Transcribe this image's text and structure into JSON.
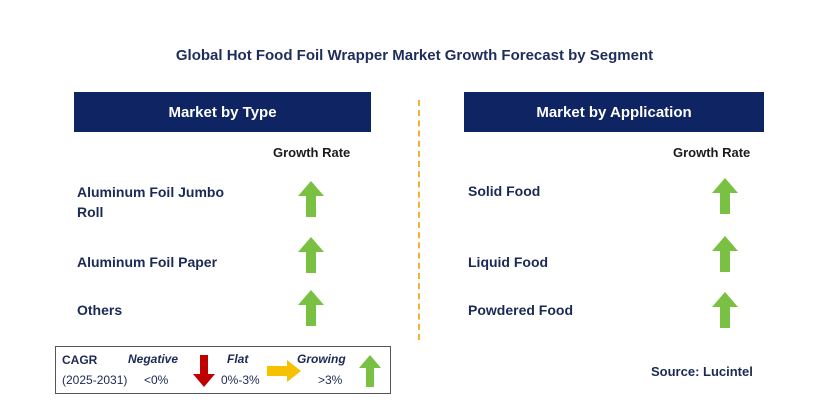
{
  "title": "Global Hot Food Foil Wrapper Market Growth Forecast by Segment",
  "colors": {
    "header_bg": "#0e2463",
    "up": "#7ac143",
    "down": "#c00000",
    "flat": "#f5c100",
    "divider": "#f2b233"
  },
  "left_panel": {
    "header": "Market by Type",
    "column_header": "Growth Rate",
    "rows": [
      {
        "label_line1": "Aluminum Foil Jumbo",
        "label_line2": "Roll",
        "trend": "growing",
        "icon": "up-arrow-icon"
      },
      {
        "label": "Aluminum Foil Paper",
        "trend": "growing",
        "icon": "up-arrow-icon"
      },
      {
        "label": "Others",
        "trend": "growing",
        "icon": "up-arrow-icon"
      }
    ]
  },
  "right_panel": {
    "header": "Market by Application",
    "column_header": "Growth Rate",
    "rows": [
      {
        "label": "Solid Food",
        "trend": "growing",
        "icon": "up-arrow-icon"
      },
      {
        "label": "Liquid Food",
        "trend": "growing",
        "icon": "up-arrow-icon"
      },
      {
        "label": "Powdered Food",
        "trend": "growing",
        "icon": "up-arrow-icon"
      }
    ]
  },
  "legend": {
    "cagr_label": "CAGR",
    "period": "(2025-2031)",
    "negative": {
      "label": "Negative",
      "range": "<0%",
      "icon": "down-arrow-icon"
    },
    "flat": {
      "label": "Flat",
      "range": "0%-3%",
      "icon": "right-arrow-icon"
    },
    "growing": {
      "label": "Growing",
      "range": ">3%",
      "icon": "up-arrow-icon"
    }
  },
  "source": "Source: Lucintel"
}
